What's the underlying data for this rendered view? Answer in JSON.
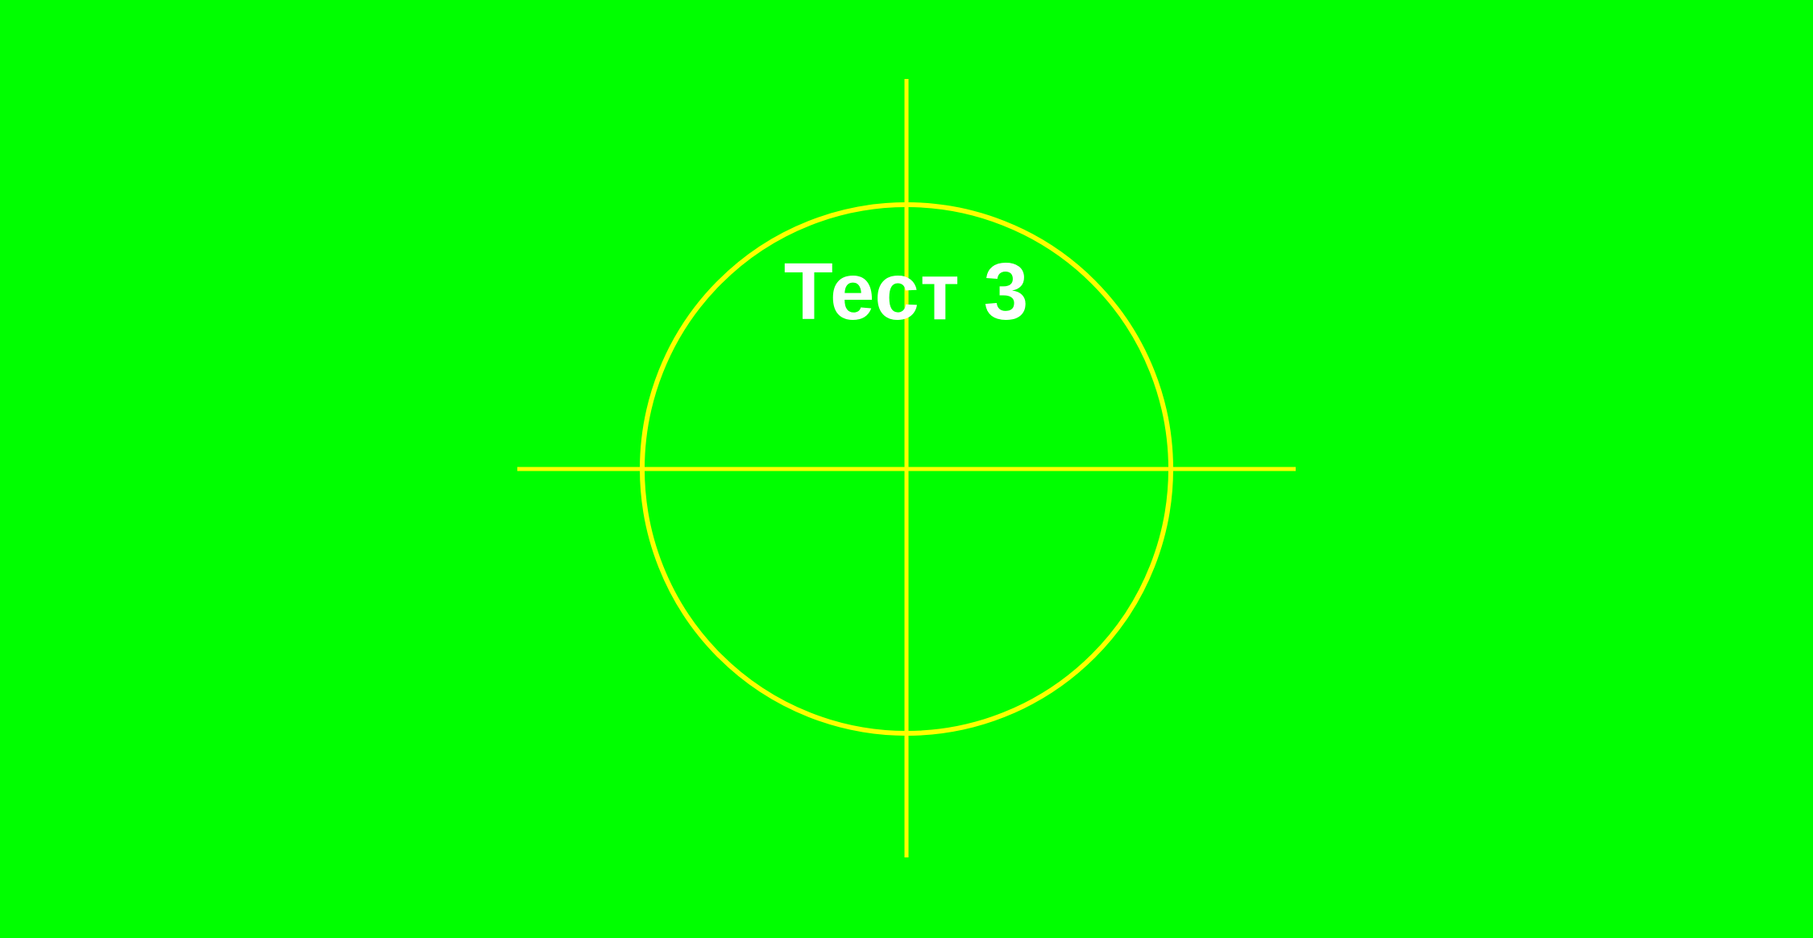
{
  "screen": {
    "title": "Тест 3",
    "colors": {
      "background": "#00ff00",
      "crosshair": "#ffff00",
      "text": "#ffffff"
    }
  }
}
